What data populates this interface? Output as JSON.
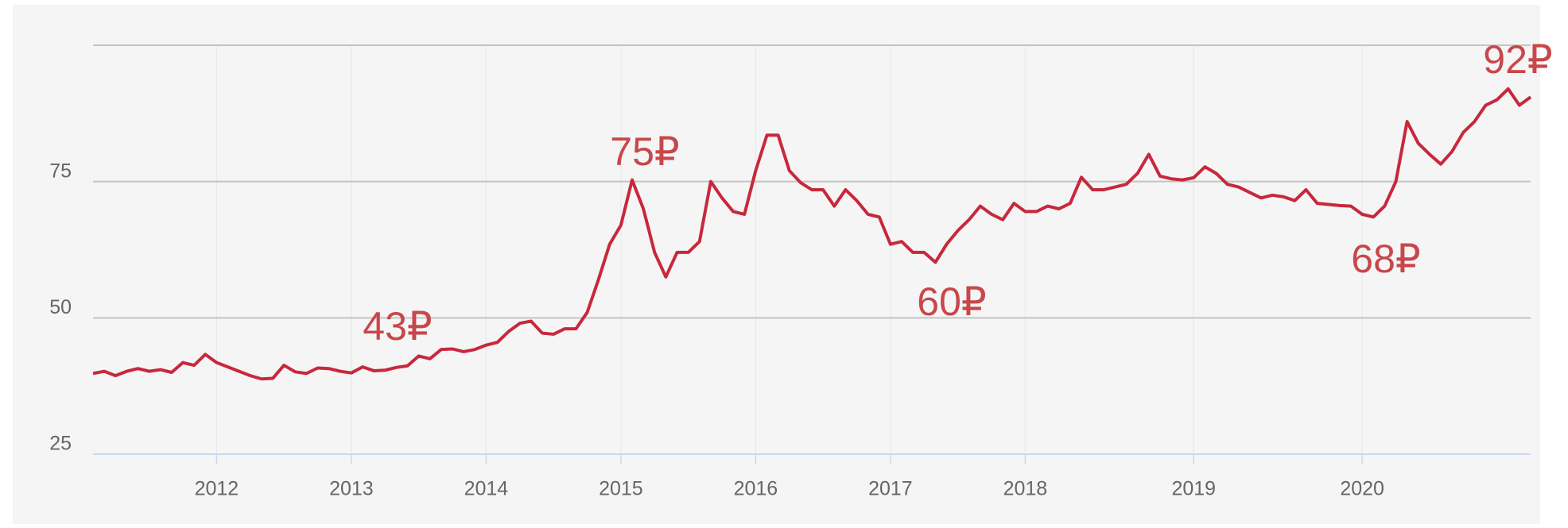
{
  "chart_data": {
    "type": "line",
    "categories": [
      null,
      null,
      null,
      null,
      null,
      null,
      null,
      null,
      null,
      null,
      null,
      "2012",
      null,
      null,
      null,
      null,
      null,
      null,
      null,
      null,
      null,
      null,
      null,
      "2013",
      null,
      null,
      null,
      null,
      null,
      null,
      null,
      null,
      null,
      null,
      null,
      "2014",
      null,
      null,
      null,
      null,
      null,
      null,
      null,
      null,
      null,
      null,
      null,
      "2015",
      null,
      null,
      null,
      null,
      null,
      null,
      null,
      null,
      null,
      null,
      null,
      "2016",
      null,
      null,
      null,
      null,
      null,
      null,
      null,
      null,
      null,
      null,
      null,
      "2017",
      null,
      null,
      null,
      null,
      null,
      null,
      null,
      null,
      null,
      null,
      null,
      "2018",
      null,
      null,
      null,
      null,
      null,
      null,
      null,
      null,
      null,
      null,
      null,
      null,
      null,
      null,
      "2019",
      null,
      null,
      null,
      null,
      null,
      null,
      null,
      null,
      null,
      null,
      null,
      null,
      null,
      null,
      "2020",
      null,
      null,
      null,
      null,
      null,
      null,
      null,
      null,
      null,
      null,
      null,
      null,
      null,
      null,
      null
    ],
    "series": [
      {
        "color": "#c8283c",
        "values": [
          39.8,
          40.2,
          39.4,
          40.2,
          40.7,
          40.2,
          40.5,
          40,
          41.8,
          41.3,
          43.3,
          41.8,
          41,
          40.2,
          39.4,
          38.8,
          38.9,
          41.3,
          40.1,
          39.8,
          40.8,
          40.7,
          40.2,
          39.9,
          41,
          40.3,
          40.4,
          40.9,
          41.2,
          43,
          42.5,
          44.2,
          44.3,
          43.8,
          44.2,
          45,
          45.5,
          47.5,
          49,
          49.4,
          47.2,
          47,
          48,
          48,
          51,
          57,
          63.5,
          67,
          75.3,
          70,
          62,
          57.5,
          62,
          62,
          64,
          75,
          72,
          69.5,
          69,
          77,
          83.5,
          83.5,
          77,
          74.8,
          73.5,
          73.5,
          70.5,
          73.5,
          71.5,
          69,
          68.5,
          63.5,
          64,
          62,
          62,
          60.2,
          63.5,
          66,
          68,
          70.5,
          69,
          68,
          71,
          69.5,
          69.5,
          70.5,
          70,
          71,
          75.8,
          73.5,
          73.5,
          74,
          74.5,
          76.5,
          80,
          76,
          75.5,
          75.3,
          75.7,
          77.7,
          76.5,
          74.5,
          74,
          73,
          72,
          72.5,
          72.2,
          71.5,
          73.5,
          71,
          70.8,
          70.6,
          70.5,
          69,
          68.5,
          70.5,
          75,
          86,
          82,
          80,
          78.2,
          80.5,
          84,
          86,
          89,
          90,
          92,
          89,
          90.5
        ]
      }
    ],
    "ylim": [
      25,
      100
    ],
    "yticks": [
      25,
      50,
      75
    ],
    "grid": true,
    "annotations": [
      "43₽",
      "75₽",
      "60₽",
      "68₽",
      "92₽"
    ]
  }
}
